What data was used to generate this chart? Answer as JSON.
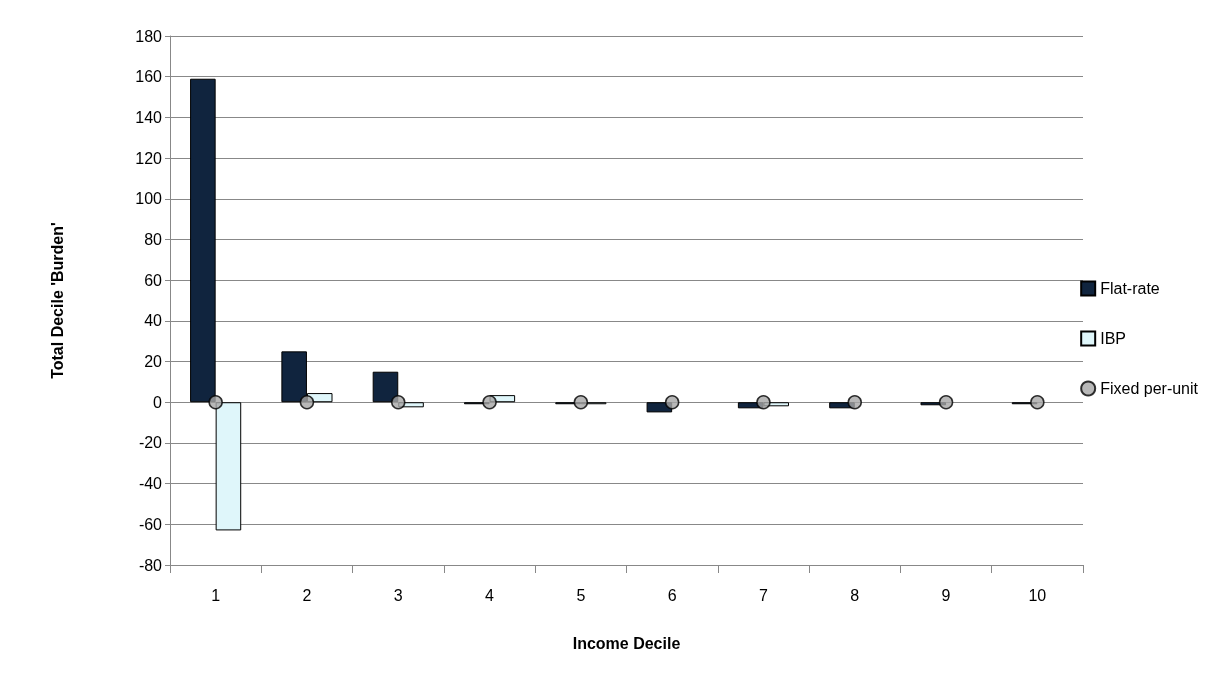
{
  "chart_data": {
    "type": "bar",
    "xlabel": "Income Decile",
    "ylabel": "Total Decile 'Burden'",
    "categories": [
      "1",
      "2",
      "3",
      "4",
      "5",
      "6",
      "7",
      "8",
      "9",
      "10"
    ],
    "series": [
      {
        "name": "Flat-rate",
        "color": "#10243e",
        "values": [
          159,
          25,
          15,
          -1,
          -1,
          -5,
          -3,
          -3,
          -1.5,
          -1
        ]
      },
      {
        "name": "IBP",
        "color": "#dff6fa",
        "values": [
          -63,
          4.5,
          -2.5,
          3.5,
          -1,
          null,
          -2,
          null,
          null,
          null
        ]
      },
      {
        "name": "Fixed per-unit",
        "type": "scatter",
        "color": "#a6a6a6",
        "x": [
          "1",
          "2",
          "3",
          "4",
          "5",
          "6",
          "7",
          "8",
          "9",
          "10"
        ],
        "values": [
          0,
          0,
          0,
          0,
          0,
          0,
          0,
          0,
          0,
          0
        ]
      }
    ],
    "ylim": [
      -80,
      180
    ],
    "yticks": [
      -80,
      -60,
      -40,
      -20,
      0,
      20,
      40,
      60,
      80,
      100,
      120,
      140,
      160,
      180
    ],
    "grid": "y",
    "legend": "right",
    "marker": "circle"
  }
}
